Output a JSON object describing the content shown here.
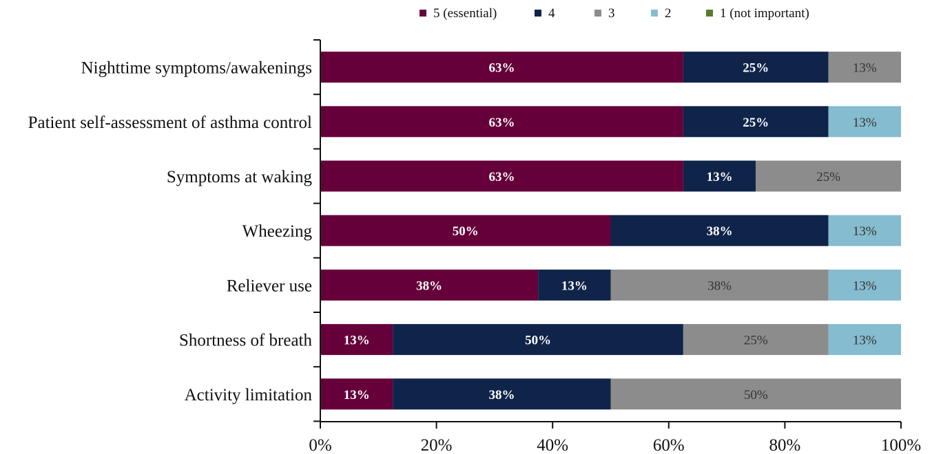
{
  "chart_data": {
    "type": "bar",
    "orientation": "horizontal",
    "stacked": true,
    "xlim": [
      0,
      100
    ],
    "x_ticks": [
      "0%",
      "20%",
      "40%",
      "60%",
      "80%",
      "100%"
    ],
    "legend_position": "top",
    "categories": [
      "Nighttime symptoms/awakenings",
      "Patient self-assessment of asthma control",
      "Symptoms at waking",
      "Wheezing",
      "Reliever use",
      "Shortness of breath",
      "Activity limitation"
    ],
    "series": [
      {
        "name": "5 (essential)",
        "color": "#65003a",
        "values": [
          62.5,
          62.5,
          62.5,
          50,
          37.5,
          12.5,
          12.5
        ],
        "labels": [
          "63%",
          "63%",
          "63%",
          "50%",
          "38%",
          "13%",
          "13%"
        ]
      },
      {
        "name": "4",
        "color": "#10244a",
        "values": [
          25,
          25,
          12.5,
          37.5,
          12.5,
          50,
          37.5
        ],
        "labels": [
          "25%",
          "25%",
          "13%",
          "38%",
          "13%",
          "50%",
          "38%"
        ]
      },
      {
        "name": "3",
        "color": "#8c8c8c",
        "values": [
          12.5,
          0,
          25,
          0,
          37.5,
          25,
          50
        ],
        "labels": [
          "13%",
          "",
          "25%",
          "",
          "38%",
          "25%",
          "50%"
        ]
      },
      {
        "name": "2",
        "color": "#85bccf",
        "values": [
          0,
          12.5,
          0,
          12.5,
          12.5,
          12.5,
          0
        ],
        "labels": [
          "",
          "13%",
          "",
          "13%",
          "13%",
          "13%",
          ""
        ]
      },
      {
        "name": "1 (not important)",
        "color": "#5b7a2e",
        "values": [
          0,
          0,
          0,
          0,
          0,
          0,
          0
        ],
        "labels": [
          "",
          "",
          "",
          "",
          "",
          "",
          ""
        ]
      }
    ]
  }
}
